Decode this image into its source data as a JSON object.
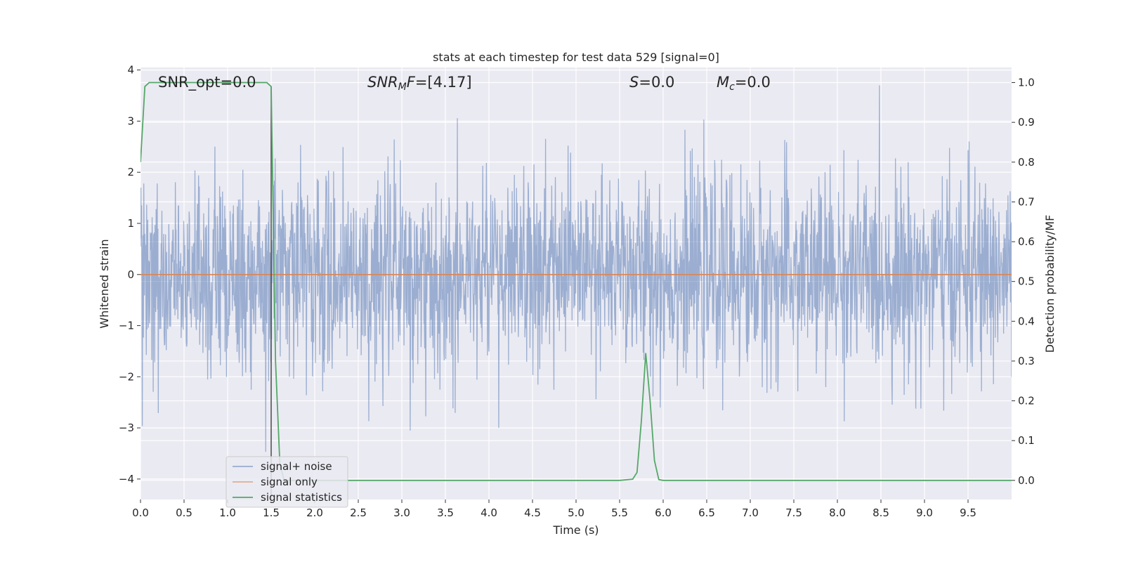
{
  "chart_data": {
    "type": "line",
    "title": "stats at each timestep for test data 529 [signal=0]",
    "xlabel": "Time (s)",
    "ylabel": "Whitened strain",
    "y2label": "Detection probability/MF",
    "xlim": [
      0.0,
      10.0
    ],
    "ylim": [
      -4.4,
      4.05
    ],
    "y2lim": [
      -0.048,
      1.038
    ],
    "x_ticks": [
      "0.0",
      "0.5",
      "1.0",
      "1.5",
      "2.0",
      "2.5",
      "3.0",
      "3.5",
      "4.0",
      "4.5",
      "5.0",
      "5.5",
      "6.0",
      "6.5",
      "7.0",
      "7.5",
      "8.0",
      "8.5",
      "9.0",
      "9.5"
    ],
    "y_ticks": [
      "4",
      "3",
      "2",
      "1",
      "0",
      "−1",
      "−2",
      "−3",
      "−4"
    ],
    "y2_ticks": [
      "1.0",
      "0.9",
      "0.8",
      "0.7",
      "0.6",
      "0.5",
      "0.4",
      "0.3",
      "0.2",
      "0.1",
      "0.0"
    ],
    "grid": true,
    "legend_position": "lower-left",
    "annotations": [
      {
        "id": "snr_opt",
        "text": "SNR_opt=0.0",
        "x": 0.2,
        "y": 3.85
      },
      {
        "id": "snr_mf",
        "prefix": "SNR",
        "sub": "M",
        "mid": "F",
        "suffix": "=[4.17]",
        "x": 2.6,
        "y": 3.85
      },
      {
        "id": "s",
        "prefix": "S",
        "suffix": "=0.0",
        "x": 5.6,
        "y": 3.85
      },
      {
        "id": "mc",
        "prefix": "M",
        "sub": "c",
        "suffix": "=0.0",
        "x": 6.6,
        "y": 3.85
      }
    ],
    "vline_x": 1.5,
    "series": [
      {
        "name": "signal+ noise",
        "color": "#4c72b0",
        "alpha": 0.5,
        "noise_envelope": {
          "x_start": 0.0,
          "x_end": 10.0,
          "typical_peak": 2.1,
          "max": 3.7,
          "min": -4.05
        }
      },
      {
        "name": "signal only",
        "color": "#dd8452",
        "x": [
          0.0,
          10.0
        ],
        "y": [
          0.0,
          0.0
        ]
      },
      {
        "name": "signal statistics",
        "color": "#55a868",
        "axis": "right",
        "x": [
          0.0,
          0.05,
          0.1,
          0.2,
          0.4,
          0.6,
          0.8,
          1.0,
          1.2,
          1.4,
          1.45,
          1.5,
          1.55,
          1.6,
          1.65,
          1.7,
          2.0,
          3.0,
          4.0,
          5.0,
          5.5,
          5.65,
          5.7,
          5.75,
          5.8,
          5.85,
          5.9,
          5.95,
          6.0,
          7.0,
          8.0,
          9.0,
          10.0
        ],
        "y": [
          0.8,
          0.99,
          1.0,
          1.0,
          1.0,
          1.0,
          1.0,
          1.0,
          1.0,
          1.0,
          1.0,
          0.99,
          0.3,
          0.04,
          0.0,
          0.0,
          0.0,
          0.0,
          0.0,
          0.0,
          0.0,
          0.003,
          0.02,
          0.15,
          0.32,
          0.2,
          0.05,
          0.002,
          0.0,
          0.0,
          0.0,
          0.0,
          0.0
        ]
      }
    ]
  }
}
